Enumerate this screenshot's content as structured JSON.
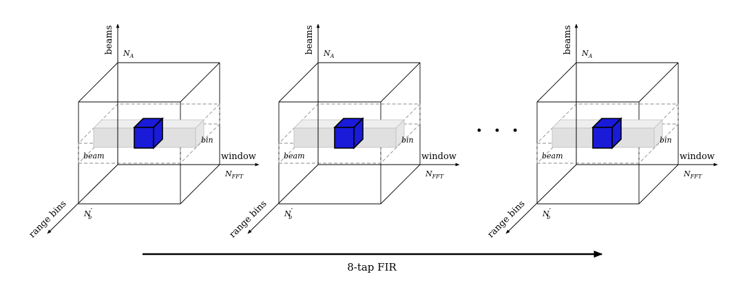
{
  "cubes": [
    {
      "axis_beams": "beams",
      "axis_window": "window",
      "axis_range": "range bins",
      "label_na": "N",
      "label_na_sub": "A",
      "label_nfft": "N",
      "label_nfft_sub": "FFT",
      "label_nb": "N",
      "label_nb_sub": "b",
      "label_nb_prime": "′",
      "slab_beam": "beam",
      "slab_bin": "bin"
    },
    {
      "axis_beams": "beams",
      "axis_window": "window",
      "axis_range": "range bins",
      "label_na": "N",
      "label_na_sub": "A",
      "label_nfft": "N",
      "label_nfft_sub": "FFT",
      "label_nb": "N",
      "label_nb_sub": "b",
      "label_nb_prime": "′",
      "slab_beam": "beam",
      "slab_bin": "bin"
    },
    {
      "axis_beams": "beams",
      "axis_window": "window",
      "axis_range": "range bins",
      "label_na": "N",
      "label_na_sub": "A",
      "label_nfft": "N",
      "label_nfft_sub": "FFT",
      "label_nb": "N",
      "label_nb_sub": "b",
      "label_nb_prime": "′",
      "slab_beam": "beam",
      "slab_bin": "bin"
    }
  ],
  "ellipsis": "· · ·",
  "arrow_label": "8-tap FIR",
  "colors": {
    "highlight_cube": "#1a1ad9",
    "slab_fill": "#e0e0e0",
    "dashed": "#8a8a8a",
    "line": "#000000"
  }
}
